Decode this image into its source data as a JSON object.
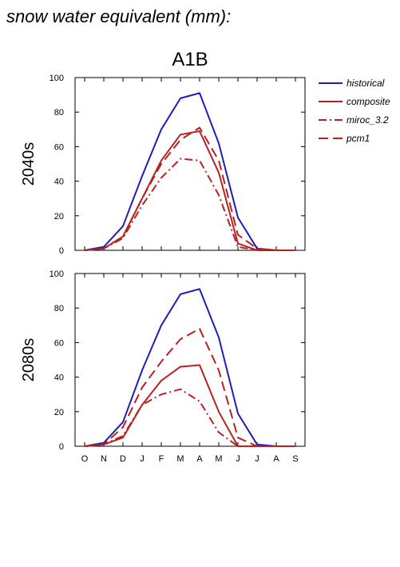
{
  "page": {
    "title": "snow water equivalent (mm):"
  },
  "chart_data": [
    {
      "type": "line",
      "title": "A1B",
      "panel_label": "2040s",
      "xlabel": "",
      "ylabel": "",
      "categories": [
        "O",
        "N",
        "D",
        "J",
        "F",
        "M",
        "A",
        "M",
        "J",
        "J",
        "A",
        "S"
      ],
      "ylim": [
        0,
        100
      ],
      "yticks": [
        0,
        20,
        40,
        60,
        80,
        100
      ],
      "xtick_labels_visible": false,
      "series": [
        {
          "name": "historical",
          "color": "#1f1fb4",
          "dash": "solid",
          "values": [
            0,
            2,
            14,
            43,
            70,
            88,
            91,
            62,
            19,
            1,
            0,
            0
          ]
        },
        {
          "name": "composite",
          "color": "#b82121",
          "dash": "solid",
          "values": [
            0,
            1,
            8,
            30,
            52,
            67,
            69,
            45,
            4,
            0,
            0,
            0
          ]
        },
        {
          "name": "miroc_3.2",
          "color": "#b82121",
          "dash": "dashdot",
          "values": [
            0,
            1,
            7,
            26,
            42,
            53,
            52,
            32,
            2,
            0,
            0,
            0
          ]
        },
        {
          "name": "pcm1",
          "color": "#b82121",
          "dash": "dashed",
          "values": [
            0,
            1,
            8,
            30,
            50,
            64,
            71,
            52,
            9,
            1,
            0,
            0
          ]
        }
      ]
    },
    {
      "type": "line",
      "title": "",
      "panel_label": "2080s",
      "xlabel": "",
      "ylabel": "",
      "categories": [
        "O",
        "N",
        "D",
        "J",
        "F",
        "M",
        "A",
        "M",
        "J",
        "J",
        "A",
        "S"
      ],
      "ylim": [
        0,
        100
      ],
      "yticks": [
        0,
        20,
        40,
        60,
        80,
        100
      ],
      "xtick_labels_visible": true,
      "series": [
        {
          "name": "historical",
          "color": "#1f1fb4",
          "dash": "solid",
          "values": [
            0,
            2,
            14,
            44,
            70,
            88,
            91,
            63,
            19,
            1,
            0,
            0
          ]
        },
        {
          "name": "composite",
          "color": "#b82121",
          "dash": "solid",
          "values": [
            0,
            1,
            5,
            24,
            38,
            46,
            47,
            20,
            0,
            0,
            0,
            0
          ]
        },
        {
          "name": "miroc_3.2",
          "color": "#b82121",
          "dash": "dashdot",
          "values": [
            0,
            1,
            6,
            24,
            30,
            33,
            26,
            8,
            0,
            0,
            0,
            0
          ]
        },
        {
          "name": "pcm1",
          "color": "#b82121",
          "dash": "dashed",
          "values": [
            0,
            1,
            11,
            34,
            49,
            62,
            68,
            44,
            5,
            0,
            0,
            0
          ]
        }
      ]
    }
  ],
  "legend": {
    "placement": "top-right",
    "entries": [
      {
        "label": "historical",
        "color": "#1f1fb4",
        "dash": "solid"
      },
      {
        "label": "composite",
        "color": "#b82121",
        "dash": "solid"
      },
      {
        "label": "miroc_3.2",
        "color": "#b82121",
        "dash": "dashdot"
      },
      {
        "label": "pcm1",
        "color": "#b82121",
        "dash": "dashed"
      }
    ]
  }
}
